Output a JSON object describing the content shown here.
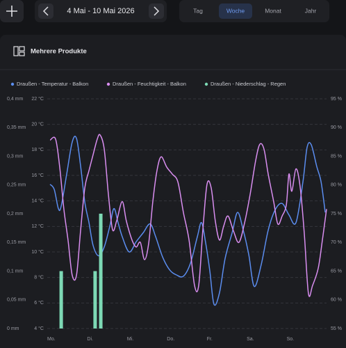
{
  "header": {
    "date_range": "4 Mai - 10 Mai 2026",
    "tabs": [
      "Tag",
      "Woche",
      "Monat",
      "Jahr"
    ],
    "active_tab": 1
  },
  "card": {
    "title": "Mehrere Produkte"
  },
  "chart_data": {
    "type": "line",
    "grid": true,
    "legend": "top",
    "xlim": [
      0,
      168
    ],
    "xticks": [
      {
        "value": 0,
        "label": "Mo."
      },
      {
        "value": 24,
        "label": "Di."
      },
      {
        "value": 48,
        "label": "Mi."
      },
      {
        "value": 72,
        "label": "Do."
      },
      {
        "value": 96,
        "label": "Fr."
      },
      {
        "value": 120,
        "label": "Sa."
      },
      {
        "value": 144,
        "label": "So."
      }
    ],
    "ylim": [
      4,
      22
    ],
    "yticks": [
      {
        "value": 4,
        "label": "4 °C"
      },
      {
        "value": 6,
        "label": "6 °C"
      },
      {
        "value": 8,
        "label": "8 °C"
      },
      {
        "value": 10,
        "label": "10 °C"
      },
      {
        "value": 12,
        "label": "12 °C"
      },
      {
        "value": 14,
        "label": "14 °C"
      },
      {
        "value": 16,
        "label": "16 °C"
      },
      {
        "value": 18,
        "label": "18 °C"
      },
      {
        "value": 20,
        "label": "20 °C"
      },
      {
        "value": 22,
        "label": "22 °C"
      }
    ],
    "y2lim": [
      55,
      95
    ],
    "y2ticks": [
      {
        "value": 55,
        "label": "55 %"
      },
      {
        "value": 60,
        "label": "60 %"
      },
      {
        "value": 65,
        "label": "65 %"
      },
      {
        "value": 70,
        "label": "70 %"
      },
      {
        "value": 75,
        "label": "75 %"
      },
      {
        "value": 80,
        "label": "80 %"
      },
      {
        "value": 85,
        "label": "85 %"
      },
      {
        "value": 90,
        "label": "90 %"
      },
      {
        "value": 95,
        "label": "95 %"
      }
    ],
    "y3lim": [
      0,
      0.4
    ],
    "y3ticks": [
      {
        "value": 0,
        "label": "0 mm"
      },
      {
        "value": 0.05,
        "label": "0,05 mm"
      },
      {
        "value": 0.1,
        "label": "0,1 mm"
      },
      {
        "value": 0.15,
        "label": "0,15 mm"
      },
      {
        "value": 0.2,
        "label": "0,2 mm"
      },
      {
        "value": 0.25,
        "label": "0,25 mm"
      },
      {
        "value": 0.3,
        "label": "0,3 mm"
      },
      {
        "value": 0.35,
        "label": "0,35 mm"
      },
      {
        "value": 0.4,
        "label": "0,4 mm"
      }
    ],
    "series": [
      {
        "name": "Draußen - Temperatur - Balkon",
        "type": "line",
        "axis": "y",
        "color": "#5b8def",
        "x": [
          1.7,
          4.2,
          6.7,
          8.4,
          11.7,
          15.0,
          17.6,
          20.1,
          22.6,
          25.1,
          27.6,
          30.9,
          34.3,
          37.6,
          40.1,
          42.6,
          45.1,
          49.3,
          53.5,
          57.7,
          61.9,
          65.2,
          69.4,
          73.6,
          77.7,
          81.9,
          86.1,
          90.3,
          92.8,
          95.3,
          97.8,
          100.3,
          103.6,
          107.0,
          111.2,
          114.5,
          117.9,
          121.2,
          124.5,
          128.7,
          132.9,
          137.1,
          141.3,
          145.4,
          149.6,
          153.8,
          156.3,
          158.8,
          162.1,
          164.7,
          167.2
        ],
        "values": [
          15.3,
          14.9,
          13.4,
          13.6,
          16.1,
          18.6,
          18.9,
          16.7,
          13.9,
          12.3,
          10.5,
          9.7,
          10.4,
          12.0,
          13.4,
          12.3,
          11.2,
          10.0,
          10.8,
          11.5,
          12.2,
          11.2,
          9.6,
          8.6,
          8.2,
          8.1,
          9.1,
          11.2,
          12.3,
          10.7,
          8.5,
          5.9,
          6.8,
          9.5,
          11.5,
          13.1,
          11.7,
          9.8,
          7.3,
          9.0,
          11.7,
          13.3,
          13.8,
          12.9,
          12.3,
          15.5,
          18.2,
          18.4,
          16.7,
          15.5,
          13.1
        ]
      },
      {
        "name": "Draußen - Feuchtigkeit - Balkon",
        "type": "line",
        "axis": "y2",
        "color": "#d98ef0",
        "x": [
          1.7,
          5.0,
          7.5,
          10.0,
          12.5,
          15.0,
          17.6,
          20.1,
          22.6,
          25.1,
          27.6,
          30.1,
          31.8,
          34.3,
          36.8,
          39.3,
          41.8,
          45.1,
          47.6,
          51.0,
          53.5,
          56.0,
          58.5,
          61.0,
          63.5,
          66.0,
          68.5,
          71.9,
          75.2,
          78.6,
          81.9,
          85.3,
          88.6,
          91.1,
          93.6,
          96.1,
          98.6,
          101.1,
          103.6,
          106.1,
          108.7,
          112.0,
          115.3,
          118.7,
          122.0,
          125.4,
          127.9,
          130.4,
          132.9,
          136.2,
          138.7,
          141.3,
          143.8,
          145.4,
          147.1,
          149.6,
          152.1,
          154.6,
          157.1,
          159.6,
          163.0,
          165.5,
          168.0
        ],
        "values": [
          87.8,
          88.0,
          83.1,
          75.8,
          70.4,
          64.3,
          64.3,
          72.2,
          79.5,
          82.5,
          85.3,
          88.0,
          88.7,
          86.2,
          78.3,
          72.2,
          73.8,
          77.1,
          73.7,
          70.4,
          69.2,
          70.0,
          67.0,
          69.8,
          77.1,
          82.5,
          84.9,
          83.1,
          81.9,
          80.5,
          75.2,
          70.4,
          62.5,
          62.5,
          72.2,
          80.1,
          79.5,
          73.7,
          70.4,
          72.8,
          74.6,
          72.0,
          70.0,
          73.4,
          78.3,
          84.3,
          87.1,
          86.2,
          81.9,
          77.1,
          73.2,
          74.6,
          76.5,
          81.9,
          78.9,
          82.8,
          79.7,
          71.6,
          61.1,
          62.5,
          65.5,
          70.4,
          75.8
        ]
      },
      {
        "name": "Draußen - Niederschlag - Regen",
        "type": "bar",
        "axis": "y3",
        "color": "#7dd9b5",
        "x": [
          8.4,
          28.8,
          32.2
        ],
        "values": [
          0.1,
          0.1,
          0.2
        ]
      }
    ]
  }
}
